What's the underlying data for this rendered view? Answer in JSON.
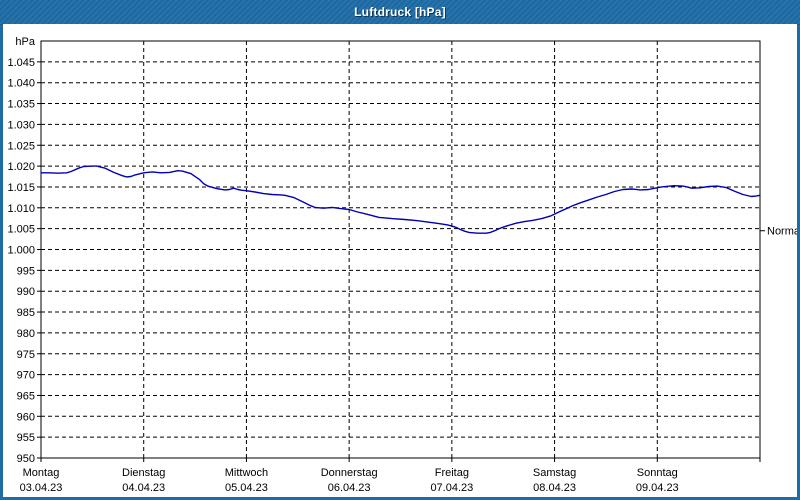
{
  "window": {
    "title": "Luftdruck [hPa]",
    "colors": {
      "titlebar_bg": "#1e6ba6",
      "window_border": "#1e6ba6",
      "plot_bg": "#ffffff",
      "grid": "#000000",
      "curve": "#0000b4",
      "normal_label": "#4a6785",
      "title_text": "#ffffff"
    }
  },
  "chart_data": {
    "type": "line",
    "title": "Luftdruck [hPa]",
    "ylabel": "hPa",
    "ylim": [
      950,
      1050
    ],
    "grid": "dashed",
    "legend_position": "none",
    "y_tick_labels": [
      "1.045",
      "1.040",
      "1.035",
      "1.030",
      "1.025",
      "1.020",
      "1.015",
      "1.010",
      "1.005",
      "1.000",
      "995",
      "990",
      "985",
      "980",
      "975",
      "970",
      "965",
      "960",
      "955",
      "950"
    ],
    "y_tick_values": [
      1045,
      1040,
      1035,
      1030,
      1025,
      1020,
      1015,
      1010,
      1005,
      1000,
      995,
      990,
      985,
      980,
      975,
      970,
      965,
      960,
      955,
      950
    ],
    "x_hours_total": 168,
    "x_days": [
      {
        "name": "Montag",
        "date": "03.04.23"
      },
      {
        "name": "Dienstag",
        "date": "04.04.23"
      },
      {
        "name": "Mittwoch",
        "date": "05.04.23"
      },
      {
        "name": "Donnerstag",
        "date": "06.04.23"
      },
      {
        "name": "Freitag",
        "date": "07.04.23"
      },
      {
        "name": "Samstag",
        "date": "08.04.23"
      },
      {
        "name": "Sonntag",
        "date": "09.04.23"
      }
    ],
    "normal_marker": {
      "label": "Normal",
      "value": 1004.5
    },
    "series": [
      {
        "name": "Luftdruck",
        "unit": "hPa",
        "color": "#0000b4",
        "points": [
          [
            0,
            1018.4
          ],
          [
            2,
            1018.4
          ],
          [
            4,
            1018.3
          ],
          [
            6,
            1018.4
          ],
          [
            7,
            1018.7
          ],
          [
            9,
            1019.6
          ],
          [
            10,
            1019.9
          ],
          [
            12,
            1020.0
          ],
          [
            13,
            1020.0
          ],
          [
            15,
            1019.5
          ],
          [
            17,
            1018.5
          ],
          [
            19,
            1017.7
          ],
          [
            20,
            1017.4
          ],
          [
            21,
            1017.5
          ],
          [
            22,
            1017.9
          ],
          [
            24,
            1018.4
          ],
          [
            26,
            1018.6
          ],
          [
            28,
            1018.4
          ],
          [
            30,
            1018.5
          ],
          [
            32,
            1018.9
          ],
          [
            33,
            1018.8
          ],
          [
            35,
            1018.2
          ],
          [
            37,
            1016.8
          ],
          [
            38,
            1015.8
          ],
          [
            39,
            1015.2
          ],
          [
            41,
            1014.6
          ],
          [
            43,
            1014.3
          ],
          [
            44,
            1014.4
          ],
          [
            45,
            1014.7
          ],
          [
            46,
            1014.4
          ],
          [
            47,
            1014.2
          ],
          [
            48,
            1014.1
          ],
          [
            50,
            1013.8
          ],
          [
            52,
            1013.4
          ],
          [
            54,
            1013.2
          ],
          [
            56,
            1013.1
          ],
          [
            57,
            1013.0
          ],
          [
            59,
            1012.5
          ],
          [
            61,
            1011.5
          ],
          [
            63,
            1010.5
          ],
          [
            64,
            1010.1
          ],
          [
            66,
            1009.9
          ],
          [
            67,
            1010.0
          ],
          [
            68,
            1010.1
          ],
          [
            70,
            1009.8
          ],
          [
            72,
            1009.6
          ],
          [
            74,
            1009.0
          ],
          [
            76,
            1008.5
          ],
          [
            79,
            1007.7
          ],
          [
            82,
            1007.4
          ],
          [
            85,
            1007.2
          ],
          [
            88,
            1006.9
          ],
          [
            91,
            1006.5
          ],
          [
            93,
            1006.2
          ],
          [
            95,
            1005.9
          ],
          [
            96,
            1005.6
          ],
          [
            97,
            1005.3
          ],
          [
            98,
            1004.8
          ],
          [
            99,
            1004.4
          ],
          [
            100,
            1004.1
          ],
          [
            102,
            1003.9
          ],
          [
            104,
            1003.9
          ],
          [
            105,
            1004.1
          ],
          [
            106,
            1004.5
          ],
          [
            107,
            1005.0
          ],
          [
            109,
            1005.7
          ],
          [
            111,
            1006.3
          ],
          [
            113,
            1006.7
          ],
          [
            115,
            1007.0
          ],
          [
            117,
            1007.4
          ],
          [
            119,
            1008.0
          ],
          [
            121,
            1009.0
          ],
          [
            123,
            1009.9
          ],
          [
            124,
            1010.4
          ],
          [
            126,
            1011.2
          ],
          [
            128,
            1011.9
          ],
          [
            130,
            1012.6
          ],
          [
            132,
            1013.2
          ],
          [
            134,
            1013.9
          ],
          [
            136,
            1014.4
          ],
          [
            138,
            1014.5
          ],
          [
            140,
            1014.3
          ],
          [
            142,
            1014.4
          ],
          [
            143,
            1014.6
          ],
          [
            145,
            1015.0
          ],
          [
            147,
            1015.2
          ],
          [
            148,
            1015.3
          ],
          [
            150,
            1015.2
          ],
          [
            151,
            1015.0
          ],
          [
            152,
            1014.7
          ],
          [
            154,
            1014.8
          ],
          [
            156,
            1015.1
          ],
          [
            158,
            1015.2
          ],
          [
            160,
            1014.9
          ],
          [
            162,
            1014.0
          ],
          [
            164,
            1013.2
          ],
          [
            166,
            1012.7
          ],
          [
            167,
            1012.8
          ],
          [
            168,
            1013.0
          ]
        ]
      }
    ]
  }
}
